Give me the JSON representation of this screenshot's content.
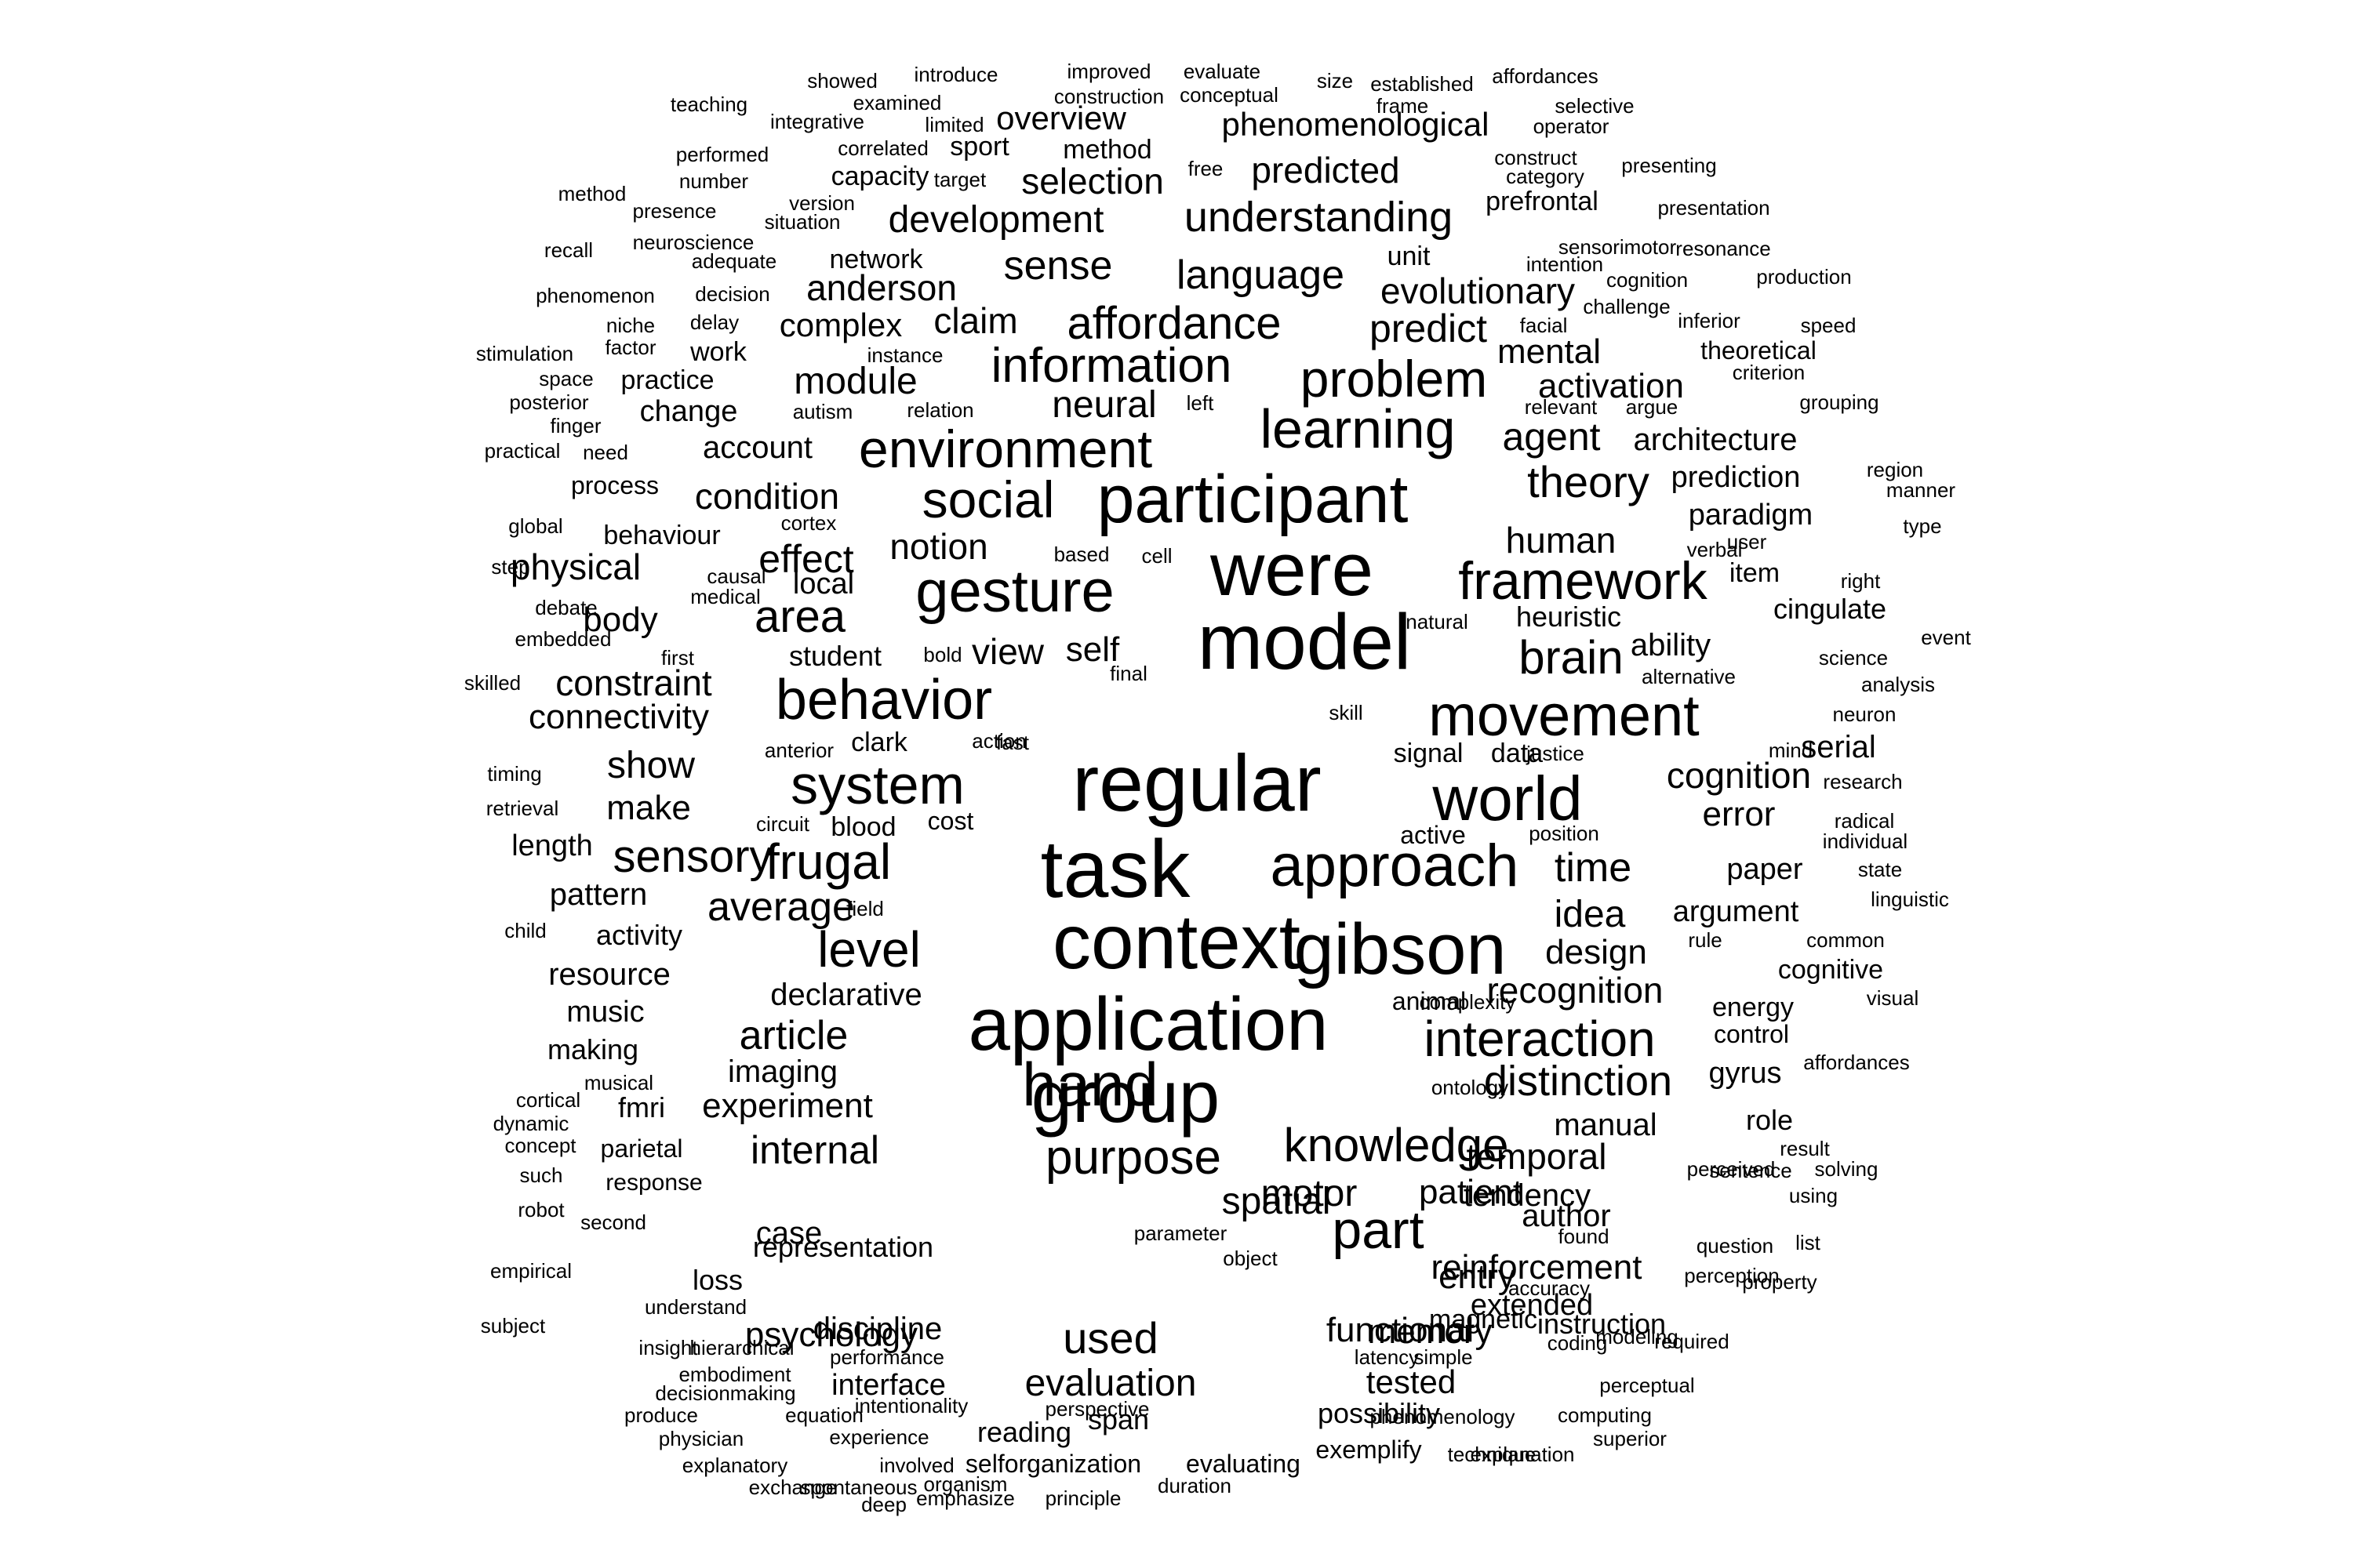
{
  "words": [
    "showed",
    "introduce",
    "improved",
    "evaluate",
    "size",
    "established",
    "affordances",
    "teaching",
    "examined",
    "construction",
    "conceptual",
    "frame",
    "selective",
    "integrative",
    "limited",
    "overview",
    "phenomenological",
    "operator",
    "performed",
    "correlated",
    "sport",
    "method",
    "construct",
    "presenting",
    "number",
    "capacity",
    "target",
    "free",
    "predicted",
    "category",
    "method",
    "presence",
    "version",
    "selection",
    "prefrontal",
    "presentation",
    "situation",
    "development",
    "understanding",
    "recall",
    "neuroscience",
    "adequate",
    "network",
    "sense",
    "unit",
    "sensorimotor",
    "resonance",
    "intention",
    "production",
    "cognition",
    "phenomenon",
    "decision",
    "anderson",
    "language",
    "evolutionary",
    "delay",
    "affordance",
    "claim",
    "complex",
    "predict",
    "facial",
    "challenge",
    "inferior",
    "speed",
    "niche",
    "factor",
    "instance",
    "work",
    "stimulation",
    "information",
    "mental",
    "theoretical",
    "criterion",
    "space",
    "practice",
    "problem",
    "module",
    "learning",
    "activation",
    "argue",
    "posterior",
    "autism",
    "relation",
    "left",
    "neural",
    "change",
    "relevant",
    "grouping",
    "finger",
    "environment",
    "practical",
    "need",
    "account",
    "agent",
    "architecture",
    "region",
    "manner",
    "process",
    "condition",
    "participant",
    "theory",
    "prediction",
    "social",
    "cortex",
    "global",
    "behaviour",
    "paradigm",
    "type",
    "user",
    "notion",
    "effect",
    "human",
    "verbal",
    "based",
    "cell",
    "step",
    "physical",
    "causal",
    "local",
    "right",
    "were",
    "item",
    "framework",
    "gesture",
    "medical",
    "debate",
    "body",
    "area",
    "heuristic",
    "cingulate",
    "embedded",
    "natural",
    "event",
    "model",
    "view",
    "self",
    "ability",
    "science",
    "first",
    "bold",
    "student",
    "skilled",
    "brain",
    "alternative",
    "final",
    "constraint",
    "analysis",
    "behavior",
    "connectivity",
    "movement",
    "fast",
    "neuron",
    "skill",
    "action",
    "clark",
    "anterior",
    "justice",
    "mind",
    "serial",
    "signal",
    "data",
    "show",
    "timing",
    "regular",
    "system",
    "research",
    "cognition",
    "world",
    "retrieval",
    "make",
    "radical",
    "circuit",
    "blood",
    "cost",
    "error",
    "position",
    "active",
    "individual",
    "length",
    "sensory",
    "time",
    "state",
    "frugal",
    "task",
    "approach",
    "paper",
    "pattern",
    "linguistic",
    "average",
    "field",
    "child",
    "argument",
    "activity",
    "idea",
    "rule",
    "common",
    "context",
    "gibson",
    "design",
    "level",
    "cognitive",
    "declarative",
    "resource",
    "recognition",
    "visual",
    "energy",
    "music",
    "complexity",
    "animal",
    "article",
    "control",
    "making",
    "application",
    "interaction",
    "affordances",
    "imaging",
    "musical",
    "cortical",
    "distinction",
    "gyrus",
    "group",
    "ontology",
    "hand",
    "fmri",
    "experiment",
    "dynamic",
    "role",
    "manual",
    "knowledge",
    "result",
    "concept",
    "internal",
    "parietal",
    "temporal",
    "solving",
    "sentence",
    "purpose",
    "such",
    "response",
    "perceived",
    "patient",
    "tendency",
    "author",
    "robot",
    "spatial",
    "motor",
    "using",
    "second",
    "list",
    "case",
    "found",
    "parameter",
    "question",
    "representation",
    "perception",
    "reinforcement",
    "part",
    "object",
    "entry",
    "empirical",
    "loss",
    "accuracy",
    "property",
    "understand",
    "extended",
    "magnetic",
    "memory",
    "subject",
    "psychology",
    "modeling",
    "discipline",
    "functional",
    "instruction",
    "insight",
    "hierarchical",
    "used",
    "required",
    "coding",
    "performance",
    "latency",
    "simple",
    "embodiment",
    "interface",
    "tested",
    "evaluation",
    "perceptual",
    "decisionmaking",
    "perspective",
    "intentionality",
    "possibility",
    "phenomenology",
    "computing",
    "produce",
    "equation",
    "reading",
    "span",
    "physician",
    "experience",
    "superior",
    "exemplify",
    "technique",
    "explanatory",
    "involved",
    "selforganization",
    "evaluating",
    "explanation",
    "exchange",
    "spontaneous",
    "organism",
    "duration",
    "deep",
    "emphasize",
    "principle"
  ]
}
